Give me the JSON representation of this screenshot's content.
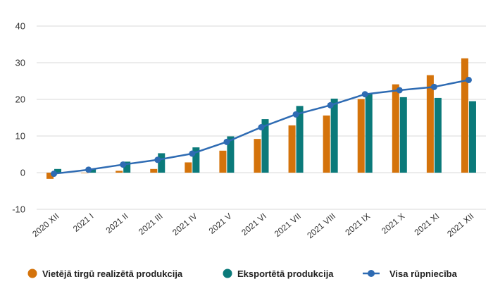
{
  "chart_data": {
    "type": "bar",
    "categories": [
      "2020 XII",
      "2021 I",
      "2021 II",
      "2021 III",
      "2021 IV",
      "2021 V",
      "2021 VI",
      "2021 VII",
      "2021 VIII",
      "2021 IX",
      "2021 X",
      "2021 XI",
      "2021 XII"
    ],
    "series": [
      {
        "name": "Vietējā tirgū realizētā produkcija",
        "type": "bar",
        "color": "#d4730b",
        "values": [
          -1.7,
          0.0,
          0.5,
          1.0,
          2.8,
          6.0,
          9.2,
          12.9,
          15.6,
          20.1,
          24.1,
          26.6,
          31.2
        ]
      },
      {
        "name": "Eksportētā produkcija",
        "type": "bar",
        "color": "#0b7a7a",
        "values": [
          1.0,
          1.0,
          3.0,
          5.3,
          6.9,
          9.9,
          14.6,
          18.2,
          20.2,
          21.7,
          20.6,
          20.4,
          19.5
        ]
      },
      {
        "name": "Visa rūpniecība",
        "type": "line",
        "color": "#2e6bb3",
        "values": [
          -0.3,
          0.8,
          2.2,
          3.5,
          5.2,
          8.4,
          12.4,
          15.9,
          18.4,
          21.4,
          22.5,
          23.4,
          25.3
        ]
      }
    ],
    "ylim": [
      -10,
      40
    ],
    "yticks": [
      -10,
      0,
      10,
      20,
      30,
      40
    ],
    "grid": true,
    "legend_position": "bottom",
    "xlabel": "",
    "ylabel": "",
    "title": ""
  }
}
